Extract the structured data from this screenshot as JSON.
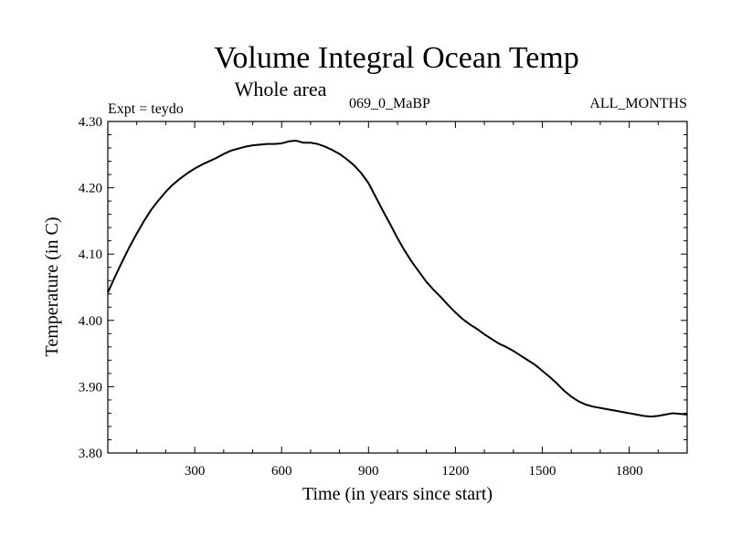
{
  "chart_data": {
    "type": "line",
    "title": "Volume Integral Ocean Temp",
    "subtitle": "Whole area",
    "annotations": {
      "experiment": "Expt = teydo",
      "run": "069_0_MaBP",
      "months": "ALL_MONTHS"
    },
    "xlabel": "Time (in years since start)",
    "ylabel": "Temperature (in C)",
    "xlim": [
      0,
      2000
    ],
    "ylim": [
      3.8,
      4.3
    ],
    "xticks": [
      300,
      600,
      900,
      1200,
      1500,
      1800
    ],
    "xtick_labels": [
      "300",
      "600",
      "900",
      "1200",
      "1500",
      "1800"
    ],
    "yticks": [
      3.8,
      3.9,
      4.0,
      4.1,
      4.2,
      4.3
    ],
    "ytick_labels": [
      "3.80",
      "3.90",
      "4.00",
      "4.10",
      "4.20",
      "4.30"
    ],
    "grid": false,
    "series": [
      {
        "name": "Volume Integral Ocean Temp",
        "x": [
          0,
          25,
          50,
          75,
          100,
          125,
          150,
          175,
          200,
          225,
          250,
          275,
          300,
          325,
          350,
          375,
          400,
          425,
          450,
          475,
          500,
          525,
          550,
          575,
          600,
          625,
          650,
          675,
          700,
          725,
          750,
          775,
          800,
          825,
          850,
          875,
          900,
          925,
          950,
          975,
          1000,
          1025,
          1050,
          1075,
          1100,
          1125,
          1150,
          1175,
          1200,
          1225,
          1250,
          1275,
          1300,
          1325,
          1350,
          1375,
          1400,
          1425,
          1450,
          1475,
          1500,
          1525,
          1550,
          1575,
          1600,
          1625,
          1650,
          1675,
          1700,
          1725,
          1750,
          1775,
          1800,
          1825,
          1850,
          1875,
          1900,
          1925,
          1950,
          1975,
          2000
        ],
        "values": [
          4.042,
          4.066,
          4.089,
          4.111,
          4.131,
          4.15,
          4.167,
          4.181,
          4.194,
          4.205,
          4.214,
          4.222,
          4.229,
          4.235,
          4.24,
          4.245,
          4.251,
          4.256,
          4.259,
          4.262,
          4.264,
          4.265,
          4.266,
          4.266,
          4.267,
          4.27,
          4.271,
          4.268,
          4.268,
          4.266,
          4.262,
          4.257,
          4.251,
          4.243,
          4.234,
          4.222,
          4.207,
          4.186,
          4.165,
          4.145,
          4.124,
          4.105,
          4.088,
          4.073,
          4.058,
          4.046,
          4.035,
          4.023,
          4.012,
          4.002,
          3.994,
          3.987,
          3.979,
          3.972,
          3.965,
          3.96,
          3.954,
          3.947,
          3.94,
          3.933,
          3.924,
          3.915,
          3.905,
          3.894,
          3.885,
          3.878,
          3.873,
          3.87,
          3.868,
          3.866,
          3.864,
          3.862,
          3.86,
          3.858,
          3.856,
          3.855,
          3.856,
          3.858,
          3.86,
          3.859,
          3.858
        ]
      }
    ]
  }
}
